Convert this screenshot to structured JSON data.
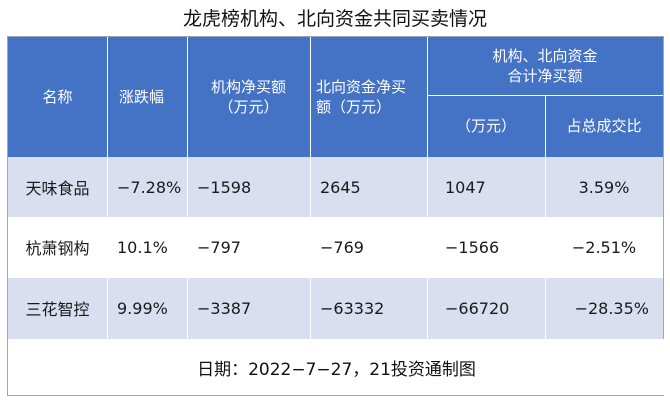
{
  "title": "龙虎榜机构、北向资金共同买卖情况",
  "columns": {
    "name": "名称",
    "change": "涨跌幅",
    "inst_net_line1": "机构净买额",
    "inst_net_line2": "（万元）",
    "north_net_line1": "北向资金净买",
    "north_net_line2": "额（万元）",
    "combined_group_line1": "机构、北向资金",
    "combined_group_line2": "合计净买额",
    "combined_amount": "（万元）",
    "combined_ratio": "占总成交比"
  },
  "rows": [
    {
      "name": "天味食品",
      "change": "−7.28%",
      "inst_net": "−1598",
      "north_net": "2645",
      "combined_amount": "1047",
      "combined_ratio": "3.59%"
    },
    {
      "name": "杭萧钢构",
      "change": "10.1%",
      "inst_net": "−797",
      "north_net": "−769",
      "combined_amount": "−1566",
      "combined_ratio": "−2.51%"
    },
    {
      "name": "三花智控",
      "change": "9.99%",
      "inst_net": "−3387",
      "north_net": "−63332",
      "combined_amount": "−66720",
      "combined_ratio": "−28.35%"
    }
  ],
  "footer": "日期：2022−7−27，21投资通制图",
  "colors": {
    "header": "#4472c4",
    "band": "#d9dff0"
  }
}
